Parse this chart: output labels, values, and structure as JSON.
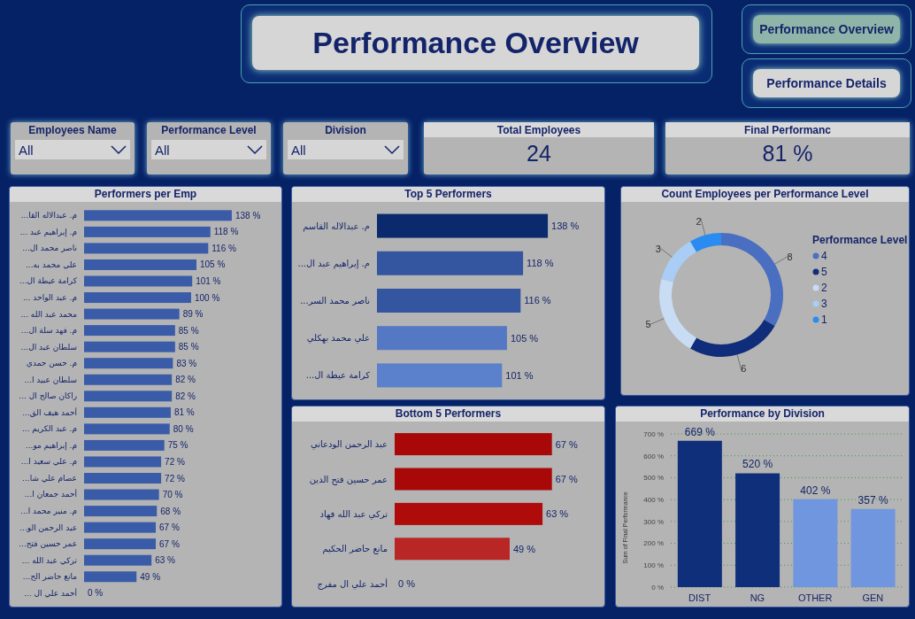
{
  "chart_data": [
    {
      "type": "other",
      "title": "Performance Overview",
      "annotations": [
        "Performance Overview",
        "Performance Details"
      ]
    },
    {
      "type": "other",
      "title": "Employees Name",
      "annotations": [
        "All"
      ]
    },
    {
      "type": "other",
      "title": "Performance Level",
      "annotations": [
        "All"
      ]
    },
    {
      "type": "other",
      "title": "Division",
      "annotations": [
        "All"
      ]
    },
    {
      "type": "other",
      "title": "Total Employees",
      "annotations": [
        "24"
      ]
    },
    {
      "type": "other",
      "title": "Final Performanc",
      "annotations": [
        "81 %"
      ]
    },
    {
      "type": "bar",
      "orientation": "horizontal",
      "title": "Performers per Emp",
      "color": "#3a5ba8",
      "categories": [
        "...م. عبدالاله القا",
        "... م. إبراهيم عبد",
        "...ناصر محمد ال",
        "...علي محمد به",
        "...كرامة عيطة ال",
        "... م. عبد الواحد",
        "... محمد عبد الله",
        "...م. فهد سلة ال",
        "...سلطان عبد ال",
        "م. حسن حمدي",
        "...سلطان عبيد ا",
        "... راكان صالح ال",
        "...أحمد هيف الق",
        "... م. عبد الكريم",
        "...م. إبراهيم مو",
        "...م. علي سعيد ا",
        "...عصام علي شا",
        "...أحمد جمعان ا",
        "...م. منير محمد ا",
        "...عبد الرحمن الو",
        "...عمر حسين فتح",
        "... تركي عبد الله",
        "...مانع حاضر الح",
        "... أحمد علي ال"
      ],
      "values": [
        138,
        118,
        116,
        105,
        101,
        100,
        89,
        85,
        85,
        83,
        82,
        82,
        81,
        80,
        75,
        72,
        72,
        70,
        68,
        67,
        67,
        63,
        49,
        0
      ],
      "value_labels": [
        "138 %",
        "118 %",
        "116 %",
        "105 %",
        "101 %",
        "100 %",
        "89 %",
        "85 %",
        "85 %",
        "83 %",
        "82 %",
        "82 %",
        "81 %",
        "80 %",
        "75 %",
        "72 %",
        "72 %",
        "70 %",
        "68 %",
        "67 %",
        "67 %",
        "63 %",
        "49 %",
        "0 %"
      ]
    },
    {
      "type": "bar",
      "orientation": "horizontal",
      "title": "Top 5 Performers",
      "categories": [
        "م. عبدالاله القاسم",
        "...م. إبراهيم عبد ال",
        "...ناصر محمد السر",
        "علي محمد بهكلي",
        "...كرامة عيطة ال"
      ],
      "values": [
        138,
        118,
        116,
        105,
        101
      ],
      "colors": [
        "#0b2a6e",
        "#34559f",
        "#34559f",
        "#5578c4",
        "#5b80cc"
      ],
      "value_labels": [
        "138 %",
        "118 %",
        "116 %",
        "105 %",
        "101 %"
      ]
    },
    {
      "type": "donut",
      "title": "Count Employees per Performance Level",
      "legend_title": "Performance Level",
      "legend": "right",
      "data_labels": true,
      "categories": [
        "4",
        "5",
        "2",
        "3",
        "1"
      ],
      "values": [
        8,
        6,
        5,
        3,
        2
      ],
      "colors": [
        "#4a6fc0",
        "#0f2d7a",
        "#c8dcf3",
        "#a9cdf5",
        "#2a8cf0"
      ]
    },
    {
      "type": "bar",
      "orientation": "horizontal",
      "title": "Bottom 5 Performers",
      "categories": [
        "عبد الرحمن الودعاني",
        "عمر حسين فتح الدين",
        "تركي عبد الله فهاد",
        "مانع حاضر الحكيم",
        "أحمد علي ال مفرج"
      ],
      "values": [
        67,
        67,
        63,
        49,
        0
      ],
      "colors": [
        "#a80808",
        "#a80808",
        "#b00b0b",
        "#b82626",
        "#b82626"
      ],
      "value_labels": [
        "67 %",
        "67 %",
        "63 %",
        "49 %",
        "0 %"
      ]
    },
    {
      "type": "bar",
      "title": "Performance by Division",
      "ylabel": "Sum of Final Performance",
      "grid": "y",
      "categories": [
        "DIST",
        "NG",
        "OTHER",
        "GEN"
      ],
      "values": [
        669,
        520,
        402,
        357
      ],
      "colors": [
        "#0f2f7a",
        "#0f2f7a",
        "#7096df",
        "#7096df"
      ],
      "value_labels": [
        "669 %",
        "520 %",
        "402 %",
        "357 %"
      ],
      "ylim": [
        0,
        700
      ],
      "yticks": [
        {
          "value": 0,
          "label": "0 %"
        },
        {
          "value": 100,
          "label": "100 %"
        },
        {
          "value": 200,
          "label": "200 %"
        },
        {
          "value": 300,
          "label": "300 %"
        },
        {
          "value": 400,
          "label": "400 %"
        },
        {
          "value": 500,
          "label": "500 %"
        },
        {
          "value": 600,
          "label": "600 %"
        },
        {
          "value": 700,
          "label": "700 %"
        }
      ]
    }
  ]
}
